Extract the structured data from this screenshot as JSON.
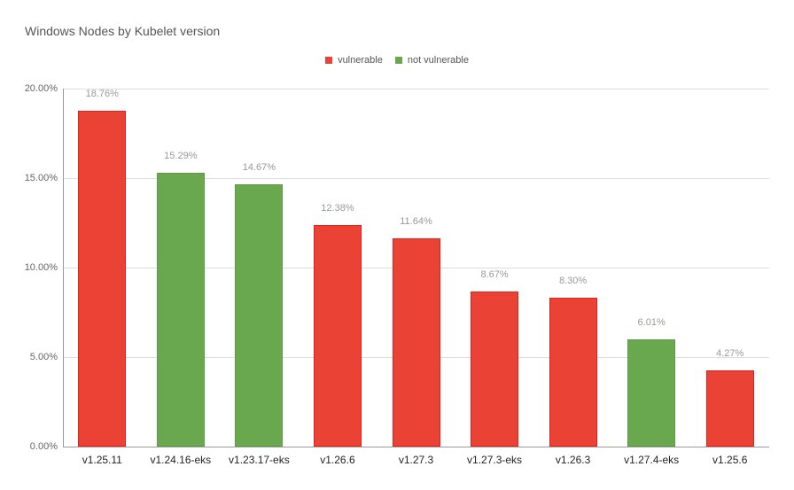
{
  "chart_data": {
    "type": "bar",
    "title": "Windows Nodes by Kubelet version",
    "xlabel": "",
    "ylabel": "",
    "ylim": [
      0,
      20
    ],
    "yticks": [
      "0.00%",
      "5.00%",
      "10.00%",
      "15.00%",
      "20.00%"
    ],
    "grid": true,
    "legend_position": "top",
    "legend": [
      {
        "name": "vulnerable",
        "color": "#ea4335"
      },
      {
        "name": "not vulnerable",
        "color": "#6aa84f"
      }
    ],
    "categories": [
      "v1.25.11",
      "v1.24.16-eks",
      "v1.23.17-eks",
      "v1.26.6",
      "v1.27.3",
      "v1.27.3-eks",
      "v1.26.3",
      "v1.27.4-eks",
      "v1.25.6"
    ],
    "values": [
      18.76,
      15.29,
      14.67,
      12.38,
      11.64,
      8.67,
      8.3,
      6.01,
      4.27
    ],
    "labels": [
      "18.76%",
      "15.29%",
      "14.67%",
      "12.38%",
      "11.64%",
      "8.67%",
      "8.30%",
      "6.01%",
      "4.27%"
    ],
    "series_membership": [
      "vulnerable",
      "not vulnerable",
      "not vulnerable",
      "vulnerable",
      "vulnerable",
      "vulnerable",
      "vulnerable",
      "not vulnerable",
      "vulnerable"
    ]
  }
}
